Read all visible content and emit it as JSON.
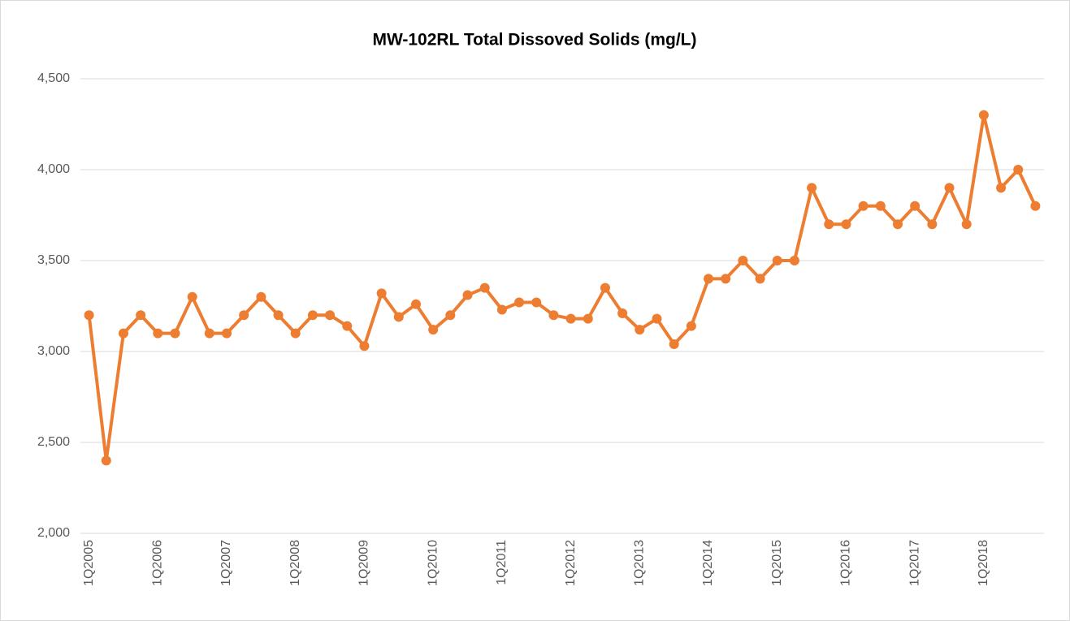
{
  "chart_data": {
    "type": "line",
    "title": "MW-102RL  Total Dissoved Solids (mg/L)",
    "categories": [
      "1Q2005",
      null,
      null,
      null,
      "1Q2006",
      null,
      null,
      null,
      "1Q2007",
      null,
      null,
      null,
      "1Q2008",
      null,
      null,
      null,
      "1Q2009",
      null,
      null,
      null,
      "1Q2010",
      null,
      null,
      null,
      "1Q2011",
      null,
      null,
      null,
      "1Q2012",
      null,
      null,
      null,
      "1Q2013",
      null,
      null,
      null,
      "1Q2014",
      null,
      null,
      null,
      "1Q2015",
      null,
      null,
      null,
      "1Q2016",
      null,
      null,
      null,
      "1Q2017",
      null,
      null,
      null,
      "1Q2018",
      null,
      null,
      null
    ],
    "series": [
      {
        "color": "#ed7d31",
        "values": [
          3200,
          2400,
          3100,
          3200,
          3100,
          3100,
          3300,
          3100,
          3100,
          3200,
          3300,
          3200,
          3100,
          3200,
          3200,
          3140,
          3030,
          3320,
          3190,
          3260,
          3120,
          3200,
          3310,
          3350,
          3230,
          3270,
          3270,
          3200,
          3180,
          3180,
          3350,
          3210,
          3120,
          3180,
          3040,
          3140,
          3400,
          3400,
          3500,
          3400,
          3500,
          3500,
          3900,
          3700,
          3700,
          3800,
          3800,
          3700,
          3800,
          3700,
          3900,
          3700,
          4300,
          3900,
          4000,
          3800
        ]
      }
    ],
    "ylim": [
      2000,
      4500
    ],
    "yticks": [
      {
        "value": 2000,
        "label": "2,000"
      },
      {
        "value": 2500,
        "label": "2,500"
      },
      {
        "value": 3000,
        "label": "3,000"
      },
      {
        "value": 3500,
        "label": "3,500"
      },
      {
        "value": 4000,
        "label": "4,000"
      },
      {
        "value": 4500,
        "label": "4,500"
      }
    ],
    "grid": true
  }
}
